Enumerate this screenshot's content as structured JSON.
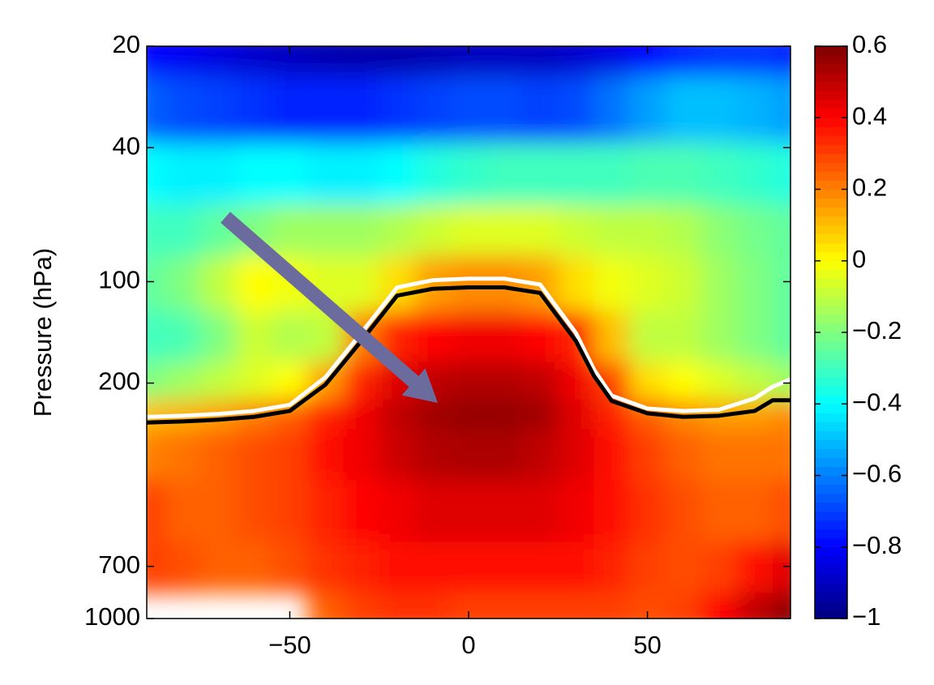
{
  "chart_data": {
    "type": "contourf",
    "y_label": "Pressure (hPa)",
    "xlim": [
      -90,
      90
    ],
    "xticks": [
      {
        "value": -50,
        "label": "−50"
      },
      0,
      50
    ],
    "ylim": [
      20,
      1000
    ],
    "y_scale": "log",
    "y_reversed": true,
    "yticks": [
      20,
      40,
      100,
      200,
      700,
      1000
    ],
    "colormap": "jet",
    "clim": [
      -1,
      0.6
    ],
    "cticks": [
      {
        "value": 0.6,
        "label": "0.6"
      },
      {
        "value": 0.4,
        "label": "0.4"
      },
      {
        "value": 0.2,
        "label": "0.2"
      },
      0,
      {
        "value": -0.2,
        "label": "−0.2"
      },
      {
        "value": -0.4,
        "label": "−0.4"
      },
      {
        "value": -0.6,
        "label": "−0.6"
      },
      {
        "value": -0.8,
        "label": "−0.8"
      },
      {
        "value": -1,
        "label": "−1"
      }
    ],
    "grid_x": [
      -90,
      -80,
      -70,
      -60,
      -50,
      -40,
      -30,
      -20,
      -10,
      0,
      10,
      20,
      30,
      40,
      50,
      60,
      70,
      80,
      90
    ],
    "grid_y": [
      20,
      30,
      50,
      70,
      100,
      150,
      200,
      250,
      300,
      500,
      700,
      1000
    ],
    "z": [
      [
        -0.8,
        -0.82,
        -0.85,
        -0.88,
        -0.9,
        -0.92,
        -0.93,
        -0.93,
        -0.92,
        -0.9,
        -0.9,
        -0.9,
        -0.88,
        -0.85,
        -0.8,
        -0.75,
        -0.72,
        -0.72,
        -0.75
      ],
      [
        -0.65,
        -0.68,
        -0.7,
        -0.72,
        -0.75,
        -0.75,
        -0.75,
        -0.72,
        -0.7,
        -0.68,
        -0.68,
        -0.7,
        -0.68,
        -0.62,
        -0.55,
        -0.5,
        -0.5,
        -0.52,
        -0.55
      ],
      [
        -0.4,
        -0.42,
        -0.42,
        -0.4,
        -0.4,
        -0.42,
        -0.42,
        -0.4,
        -0.35,
        -0.32,
        -0.3,
        -0.3,
        -0.3,
        -0.3,
        -0.28,
        -0.28,
        -0.3,
        -0.32,
        -0.35
      ],
      [
        -0.3,
        -0.3,
        -0.25,
        -0.2,
        -0.15,
        -0.15,
        -0.15,
        -0.12,
        -0.08,
        -0.05,
        -0.05,
        -0.05,
        -0.08,
        -0.1,
        -0.1,
        -0.12,
        -0.18,
        -0.22,
        -0.25
      ],
      [
        -0.25,
        -0.2,
        -0.1,
        0,
        -0.02,
        -0.05,
        -0.05,
        0.05,
        0.15,
        0.18,
        0.18,
        0.15,
        0.05,
        -0.02,
        -0.05,
        -0.08,
        -0.15,
        -0.2,
        -0.25
      ],
      [
        -0.3,
        -0.28,
        -0.2,
        -0.08,
        -0.12,
        -0.1,
        0.2,
        0.35,
        0.4,
        0.42,
        0.42,
        0.4,
        0.35,
        0.1,
        -0.1,
        -0.1,
        -0.15,
        -0.2,
        -0.25
      ],
      [
        -0.2,
        -0.15,
        -0.1,
        -0.05,
        0,
        0.15,
        0.35,
        0.45,
        0.5,
        0.52,
        0.52,
        0.5,
        0.42,
        0.3,
        0.05,
        0,
        -0.05,
        -0.1,
        -0.15
      ],
      [
        0.1,
        0.12,
        0.15,
        0.2,
        0.25,
        0.35,
        0.42,
        0.5,
        0.55,
        0.57,
        0.57,
        0.55,
        0.45,
        0.35,
        0.25,
        0.18,
        0.15,
        0.15,
        0.18
      ],
      [
        0.2,
        0.22,
        0.25,
        0.28,
        0.3,
        0.38,
        0.42,
        0.48,
        0.52,
        0.53,
        0.53,
        0.5,
        0.45,
        0.38,
        0.3,
        0.25,
        0.22,
        0.22,
        0.22
      ],
      [
        0.3,
        0.25,
        0.25,
        0.28,
        0.3,
        0.35,
        0.4,
        0.42,
        0.45,
        0.45,
        0.45,
        0.45,
        0.42,
        0.38,
        0.32,
        0.28,
        0.25,
        0.25,
        0.28
      ],
      [
        0.3,
        0.28,
        0.25,
        0.25,
        0.28,
        0.32,
        0.35,
        0.38,
        0.38,
        0.38,
        0.38,
        0.38,
        0.38,
        0.35,
        0.3,
        0.28,
        0.3,
        0.38,
        0.45
      ],
      [
        null,
        null,
        null,
        null,
        null,
        0.25,
        0.3,
        0.32,
        0.32,
        0.3,
        0.3,
        0.3,
        0.3,
        0.3,
        0.28,
        0.3,
        0.4,
        0.5,
        0.58
      ]
    ],
    "contours": [
      {
        "color": "#ffffff",
        "x": [
          -90,
          -80,
          -70,
          -60,
          -50,
          -40,
          -30,
          -20,
          -10,
          0,
          10,
          20,
          30,
          35,
          40,
          50,
          60,
          70,
          80,
          85,
          90
        ],
        "values": [
          252,
          250,
          247,
          242,
          232,
          192,
          142,
          104,
          99,
          98,
          98,
          102,
          142,
          182,
          218,
          238,
          242,
          240,
          222,
          205,
          195
        ]
      },
      {
        "color": "#000000",
        "x": [
          -90,
          -80,
          -70,
          -60,
          -50,
          -40,
          -30,
          -20,
          -10,
          0,
          10,
          20,
          30,
          35,
          40,
          50,
          60,
          70,
          80,
          85,
          90
        ],
        "values": [
          262,
          260,
          257,
          252,
          242,
          202,
          150,
          110,
          105,
          104,
          104,
          108,
          150,
          190,
          226,
          246,
          252,
          250,
          242,
          225,
          225
        ]
      }
    ]
  }
}
